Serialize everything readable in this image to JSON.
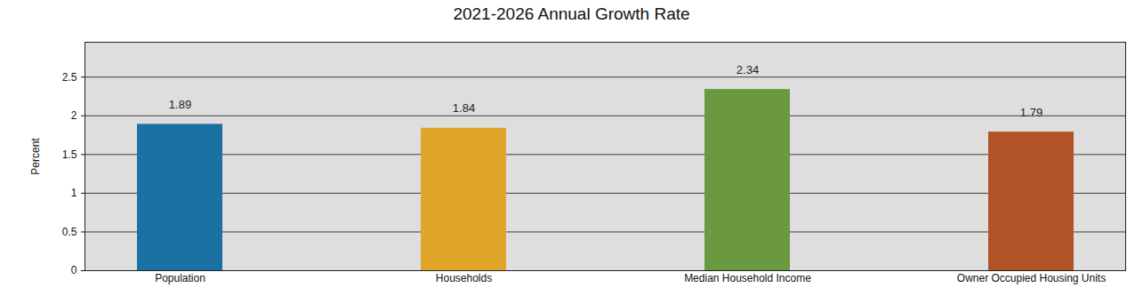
{
  "chart_data": {
    "type": "bar",
    "title": "2021-2026 Annual Growth Rate",
    "ylabel": "Percent",
    "categories": [
      "Population",
      "Households",
      "Median Household Income",
      "Owner Occupied Housing Units"
    ],
    "values": [
      1.89,
      1.84,
      2.34,
      1.79
    ],
    "colors": [
      "#1a71a3",
      "#e0a62a",
      "#6a993f",
      "#b05427"
    ],
    "ylim": [
      0,
      2.95
    ],
    "yticks": [
      0,
      0.5,
      1,
      1.5,
      2,
      2.5
    ],
    "grid": true,
    "data_labels": true
  }
}
